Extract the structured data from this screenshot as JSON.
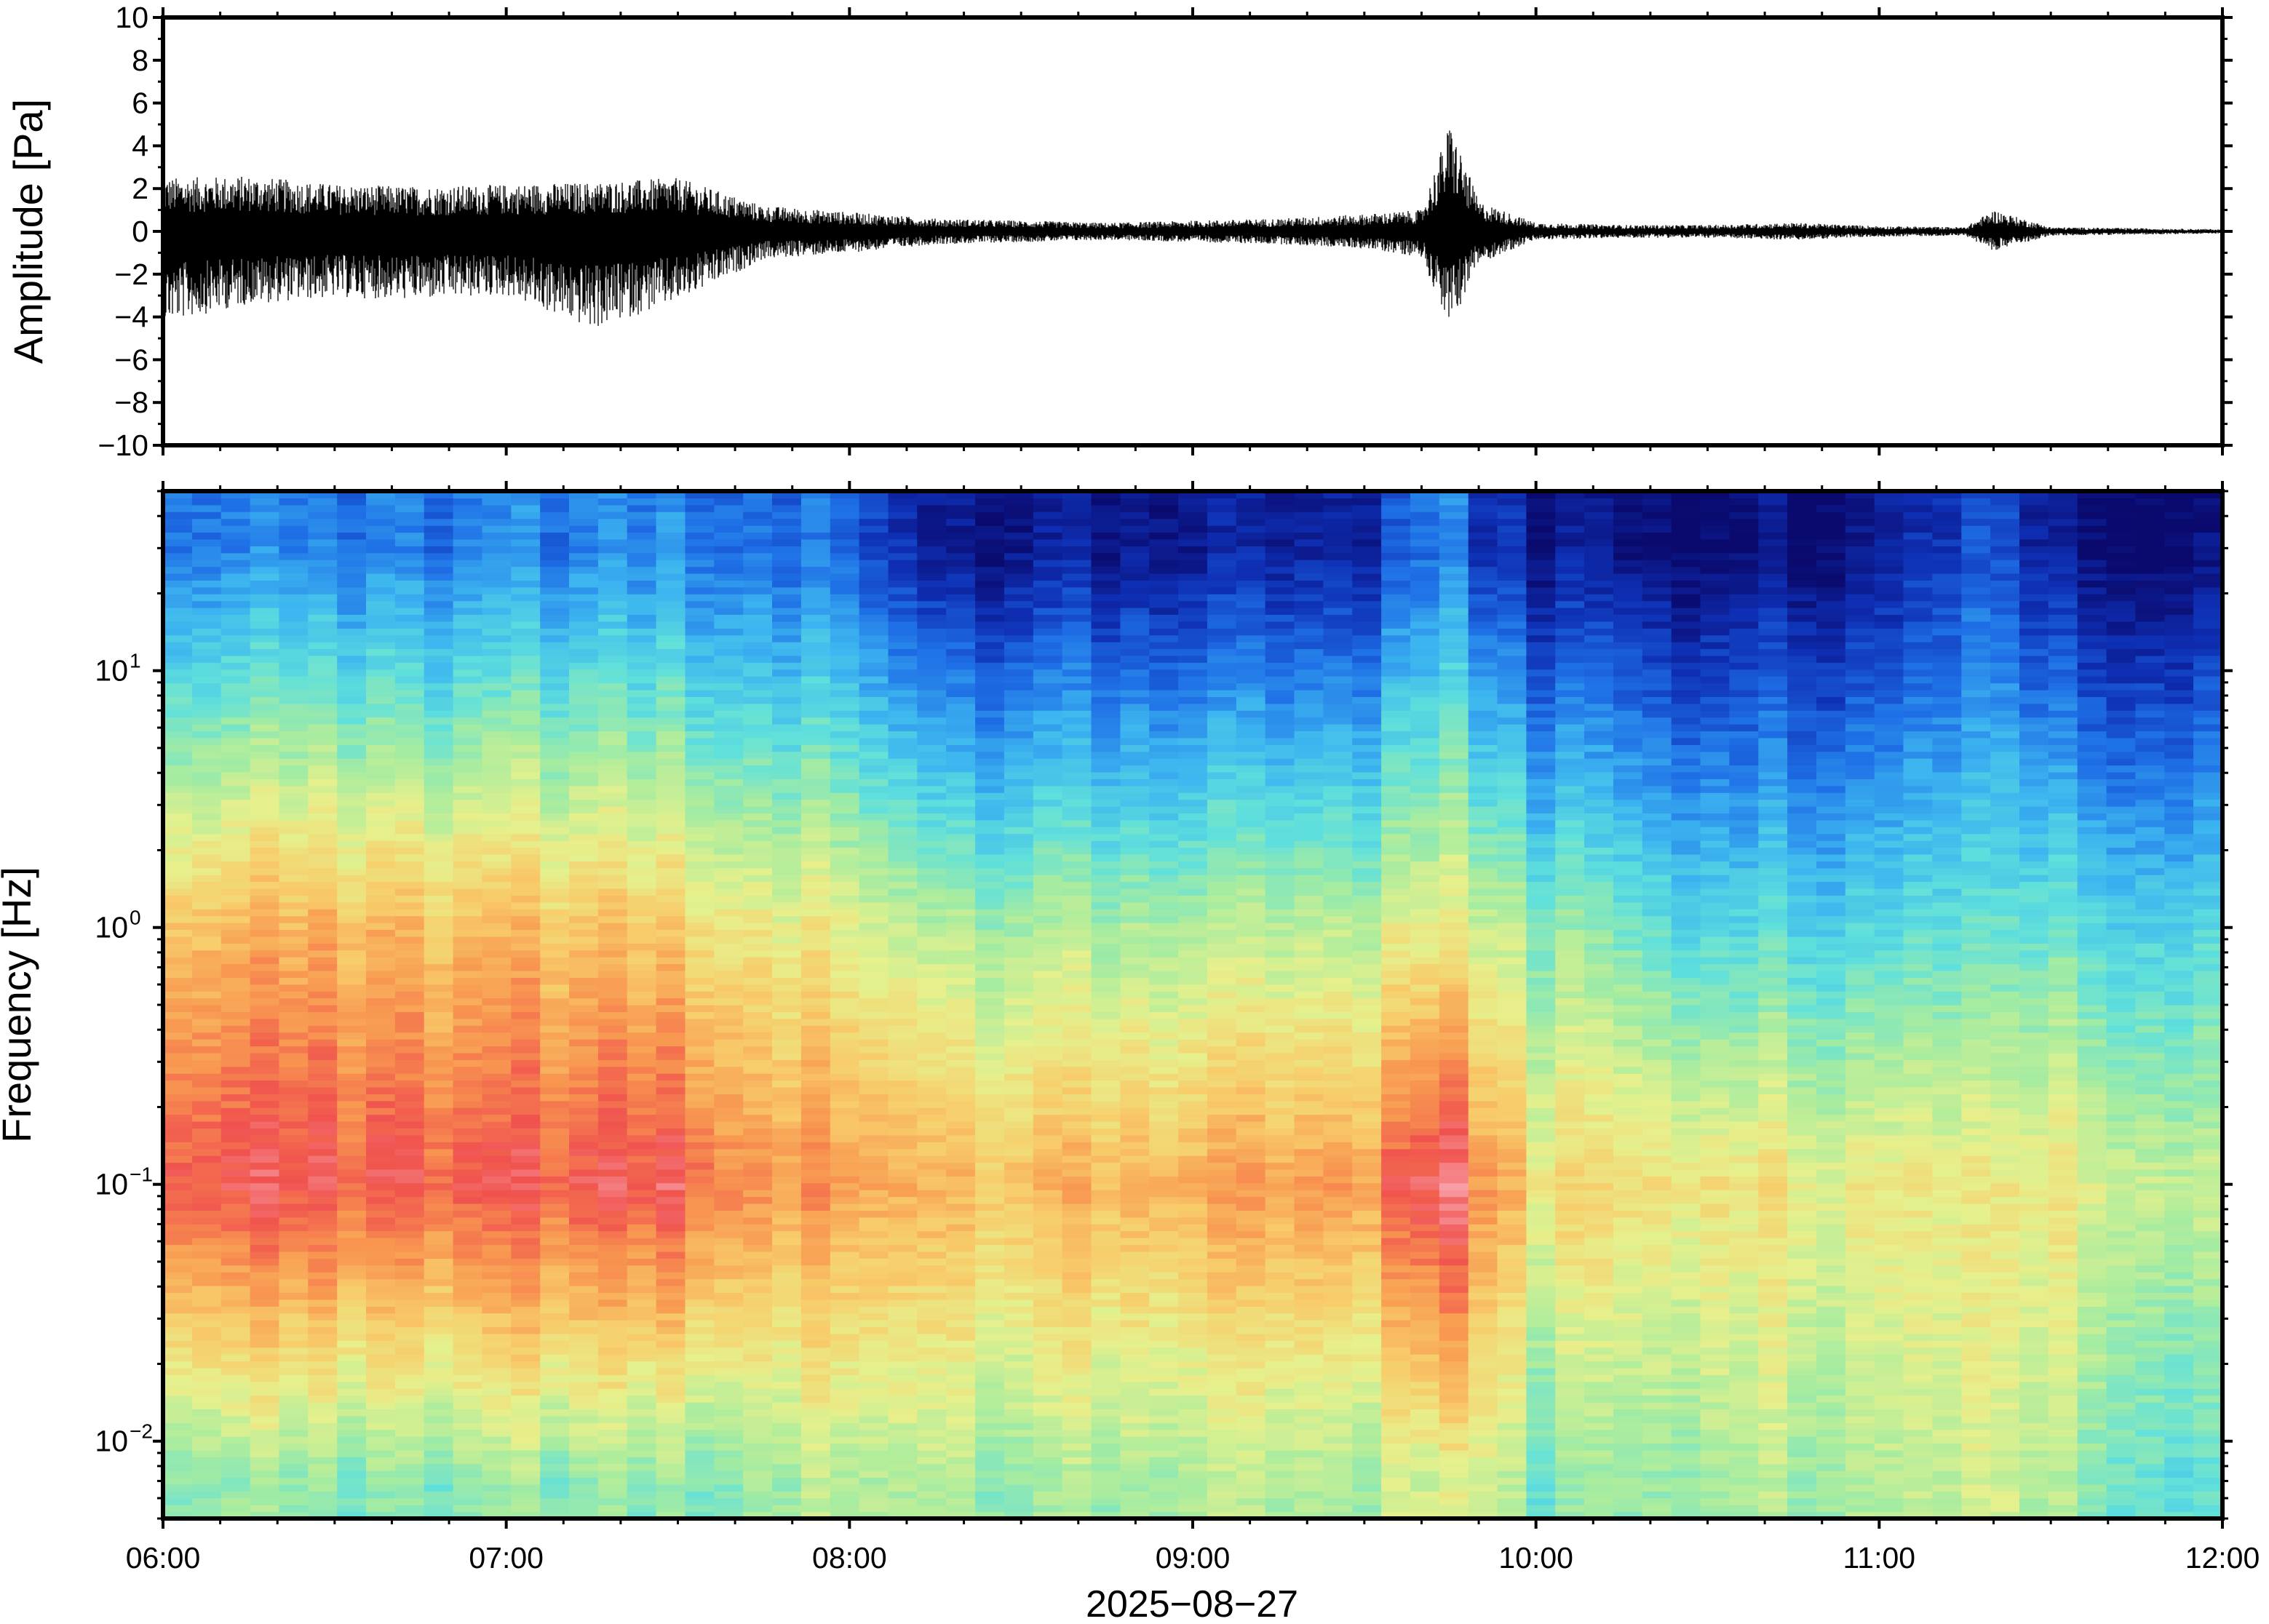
{
  "chart_data": [
    {
      "type": "line",
      "panel": "waveform",
      "ylabel": "Amplitude [Pa]",
      "ylim": [
        -10,
        10
      ],
      "y_ticks": [
        -10,
        -8,
        -6,
        -4,
        -2,
        0,
        2,
        4,
        6,
        8,
        10
      ],
      "y_tick_labels": [
        "−10",
        "−8",
        "−6",
        "−4",
        "−2",
        "0",
        "2",
        "4",
        "6",
        "8",
        "10"
      ],
      "xlim": [
        "2025-08-27 06:00",
        "2025-08-27 12:00"
      ],
      "grid": false,
      "series_color": "#000000",
      "envelope": {
        "x": [
          "06:00",
          "06:15",
          "06:30",
          "06:45",
          "07:00",
          "07:15",
          "07:30",
          "07:45",
          "08:00",
          "08:15",
          "08:30",
          "08:45",
          "09:00",
          "09:15",
          "09:30",
          "09:40",
          "09:45",
          "09:50",
          "10:00",
          "10:15",
          "10:30",
          "10:45",
          "11:00",
          "11:15",
          "11:20",
          "11:30",
          "11:45",
          "12:00"
        ],
        "y_max": [
          2.5,
          2.6,
          2.2,
          2.1,
          2.2,
          2.3,
          2.5,
          1.2,
          0.9,
          0.6,
          0.5,
          0.4,
          0.5,
          0.6,
          0.8,
          1.0,
          5.1,
          1.4,
          0.4,
          0.3,
          0.3,
          0.4,
          0.25,
          0.2,
          1.0,
          0.2,
          0.15,
          0.1
        ],
        "y_min": [
          -4.3,
          -3.4,
          -3.1,
          -3.2,
          -3.0,
          -4.6,
          -3.3,
          -1.3,
          -1.0,
          -0.6,
          -0.5,
          -0.4,
          -0.5,
          -0.6,
          -0.8,
          -1.2,
          -4.5,
          -1.5,
          -0.4,
          -0.3,
          -0.3,
          -0.4,
          -0.25,
          -0.2,
          -0.9,
          -0.2,
          -0.15,
          -0.1
        ]
      }
    },
    {
      "type": "heatmap",
      "panel": "spectrogram",
      "ylabel": "Frequency [Hz]",
      "yscale": "log",
      "ylim": [
        0.005,
        50
      ],
      "y_ticks": [
        0.01,
        0.1,
        1,
        10
      ],
      "y_tick_labels": [
        {
          "base": "10",
          "exp": "−2"
        },
        {
          "base": "10",
          "exp": "−1"
        },
        {
          "base": "10",
          "exp": "0"
        },
        {
          "base": "10",
          "exp": "1"
        }
      ],
      "x_tick_labels": [
        "06:00",
        "07:00",
        "08:00",
        "09:00",
        "10:00",
        "11:00",
        "12:00"
      ],
      "xlabel": "2025−08−27",
      "xlim": [
        "2025-08-27 06:00",
        "2025-08-27 12:00"
      ],
      "grid": false,
      "colormap": [
        "#0a0a6e",
        "#0e2fb4",
        "#1e6fe6",
        "#3cb4f0",
        "#5fe0dc",
        "#a6eca0",
        "#e6f08c",
        "#f8cc6a",
        "#f89650",
        "#f0524e",
        "#f8a0a8"
      ],
      "time_axis": [
        "06:00",
        "06:30",
        "07:00",
        "07:30",
        "07:45",
        "08:00",
        "08:15",
        "08:30",
        "09:00",
        "09:30",
        "09:45",
        "09:50",
        "10:00",
        "10:30",
        "11:00",
        "11:20",
        "11:30",
        "12:00"
      ],
      "intensity": {
        "description_levels": "0 = dark navy (lowest power) … 1 = pink (highest power)",
        "high_freq_30Hz": [
          0.22,
          0.22,
          0.22,
          0.22,
          0.2,
          0.18,
          0.04,
          0.04,
          0.05,
          0.08,
          0.24,
          0.1,
          0.04,
          0.02,
          0.02,
          0.14,
          0.02,
          0.02
        ],
        "mid_freq_1Hz": [
          0.72,
          0.74,
          0.72,
          0.68,
          0.62,
          0.6,
          0.52,
          0.5,
          0.52,
          0.55,
          0.62,
          0.55,
          0.48,
          0.4,
          0.36,
          0.4,
          0.4,
          0.38
        ],
        "low_freq_0p1Hz": [
          0.9,
          0.9,
          0.89,
          0.9,
          0.8,
          0.78,
          0.74,
          0.72,
          0.76,
          0.8,
          0.98,
          0.8,
          0.66,
          0.66,
          0.6,
          0.6,
          0.62,
          0.55
        ],
        "very_low_freq_0p008Hz": [
          0.48,
          0.46,
          0.48,
          0.45,
          0.5,
          0.52,
          0.52,
          0.48,
          0.52,
          0.52,
          0.58,
          0.58,
          0.44,
          0.52,
          0.5,
          0.55,
          0.5,
          0.4
        ]
      }
    }
  ]
}
